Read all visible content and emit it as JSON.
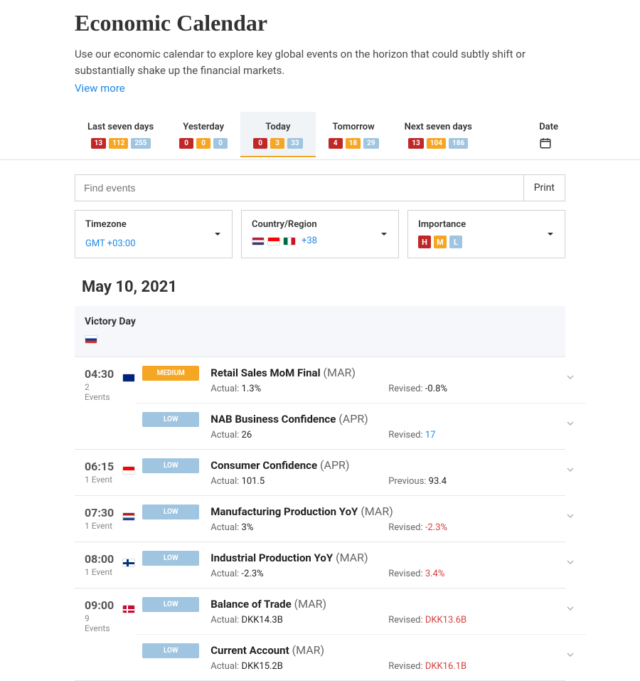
{
  "header": {
    "title": "Economic Calendar",
    "subtitle": "Use our economic calendar to explore key global events on the horizon that could subtly shift or substantially shake up the financial markets.",
    "view_more": "View more"
  },
  "tabs": [
    {
      "label": "Last seven days",
      "high": "13",
      "med": "112",
      "low": "255",
      "active": false
    },
    {
      "label": "Yesterday",
      "high": "0",
      "med": "0",
      "low": "0",
      "active": false
    },
    {
      "label": "Today",
      "high": "0",
      "med": "3",
      "low": "33",
      "active": true
    },
    {
      "label": "Tomorrow",
      "high": "4",
      "med": "18",
      "low": "29",
      "active": false
    },
    {
      "label": "Next seven days",
      "high": "13",
      "med": "104",
      "low": "186",
      "active": false
    }
  ],
  "date_label": "Date",
  "search": {
    "placeholder": "Find events"
  },
  "print_label": "Print",
  "filters": {
    "timezone": {
      "label": "Timezone",
      "value": "GMT +03:00"
    },
    "country": {
      "label": "Country/Region",
      "plus": "+38"
    },
    "importance": {
      "label": "Importance",
      "h": "H",
      "m": "M",
      "l": "L"
    }
  },
  "current_date": "May 10, 2021",
  "holiday": {
    "name": "Victory Day",
    "flag": "ru"
  },
  "colors": {
    "high": "#c02828",
    "med": "#f5a623",
    "low": "#9fc5e0",
    "link": "#1e88e5",
    "neg": "#d23f3f"
  },
  "flags": {
    "au": [
      "#00247d",
      "#ffffff"
    ],
    "id": [
      "#ff0000",
      "#ffffff"
    ],
    "nl": [
      "#ae1c28",
      "#ffffff",
      "#21468b"
    ],
    "fi": [
      "#ffffff",
      "#003580"
    ],
    "dk": [
      "#c60c30",
      "#ffffff"
    ],
    "ru": [
      "#ffffff",
      "#0039a6",
      "#d52b1e"
    ],
    "us": [
      "#b22234",
      "#ffffff",
      "#3c3b6e"
    ],
    "ca": [
      "#ff0000",
      "#ffffff"
    ],
    "mx": [
      "#006847",
      "#ffffff",
      "#ce1126"
    ]
  },
  "groups": [
    {
      "time": "04:30",
      "count": "2 Events",
      "flag": "au",
      "events": [
        {
          "importance": "MEDIUM",
          "imp_class": "medium",
          "name": "Retail Sales MoM Final",
          "period": "(MAR)",
          "metrics": [
            {
              "label": "Actual:",
              "value": "1.3%",
              "cls": ""
            },
            {
              "label": "Revised:",
              "value": "-0.8%",
              "cls": ""
            }
          ]
        },
        {
          "importance": "LOW",
          "imp_class": "low",
          "name": "NAB Business Confidence",
          "period": "(APR)",
          "metrics": [
            {
              "label": "Actual:",
              "value": "26",
              "cls": ""
            },
            {
              "label": "Revised:",
              "value": "17",
              "cls": "pos"
            }
          ]
        }
      ]
    },
    {
      "time": "06:15",
      "count": "1 Event",
      "flag": "id",
      "events": [
        {
          "importance": "LOW",
          "imp_class": "low",
          "name": "Consumer Confidence",
          "period": "(APR)",
          "metrics": [
            {
              "label": "Actual:",
              "value": "101.5",
              "cls": ""
            },
            {
              "label": "Previous:",
              "value": "93.4",
              "cls": ""
            }
          ]
        }
      ]
    },
    {
      "time": "07:30",
      "count": "1 Event",
      "flag": "nl",
      "events": [
        {
          "importance": "LOW",
          "imp_class": "low",
          "name": "Manufacturing Production YoY",
          "period": "(MAR)",
          "metrics": [
            {
              "label": "Actual:",
              "value": "3%",
              "cls": ""
            },
            {
              "label": "Revised:",
              "value": "-2.3%",
              "cls": "neg"
            }
          ]
        }
      ]
    },
    {
      "time": "08:00",
      "count": "1 Event",
      "flag": "fi",
      "events": [
        {
          "importance": "LOW",
          "imp_class": "low",
          "name": "Industrial Production YoY",
          "period": "(MAR)",
          "metrics": [
            {
              "label": "Actual:",
              "value": "-2.3%",
              "cls": ""
            },
            {
              "label": "Revised:",
              "value": "3.4%",
              "cls": "neg"
            }
          ]
        }
      ]
    },
    {
      "time": "09:00",
      "count": "9 Events",
      "flag": "dk",
      "events": [
        {
          "importance": "LOW",
          "imp_class": "low",
          "name": "Balance of Trade",
          "period": "(MAR)",
          "metrics": [
            {
              "label": "Actual:",
              "value": "DKK14.3B",
              "cls": ""
            },
            {
              "label": "Revised:",
              "value": "DKK13.6B",
              "cls": "neg"
            }
          ]
        },
        {
          "importance": "LOW",
          "imp_class": "low",
          "name": "Current Account",
          "period": "(MAR)",
          "metrics": [
            {
              "label": "Actual:",
              "value": "DKK15.2B",
              "cls": ""
            },
            {
              "label": "Revised:",
              "value": "DKK16.1B",
              "cls": "neg"
            }
          ]
        }
      ]
    }
  ]
}
